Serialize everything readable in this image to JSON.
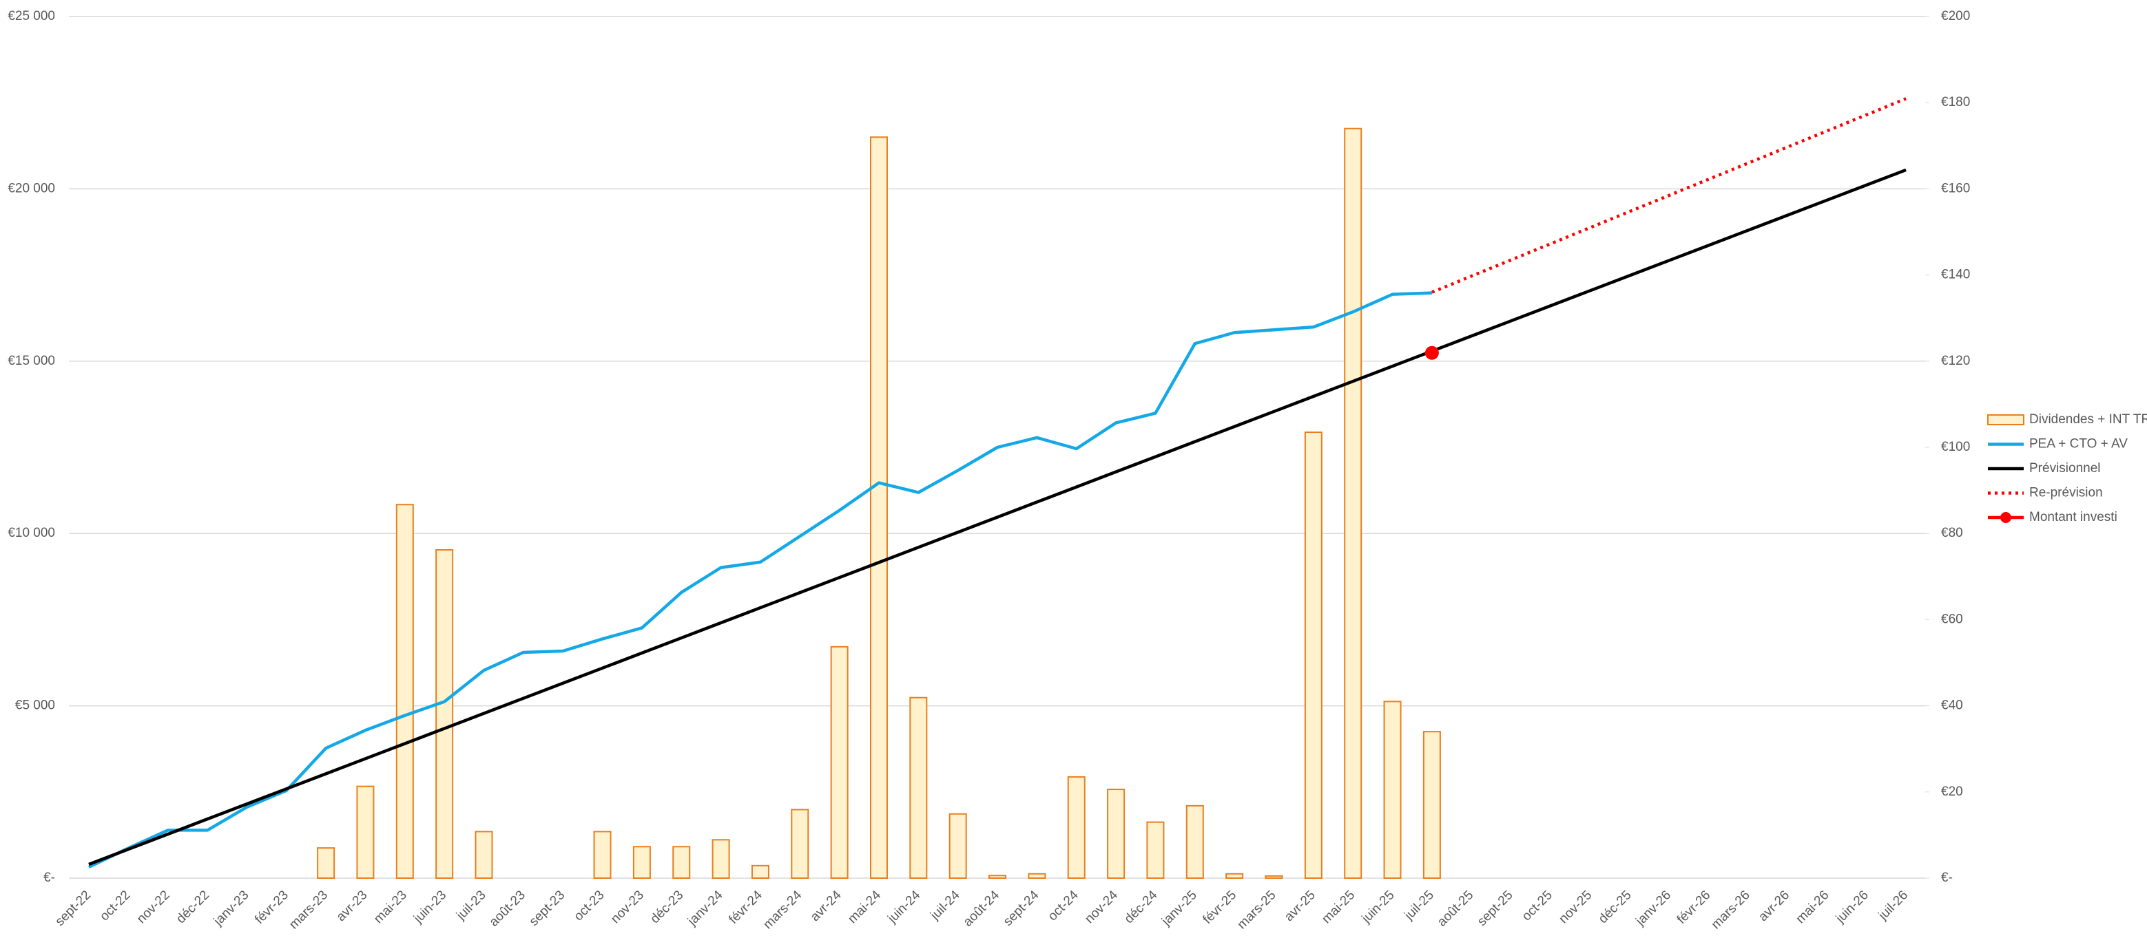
{
  "chart_data": {
    "type": "bar",
    "categories": [
      "sept-22",
      "oct-22",
      "nov-22",
      "déc-22",
      "janv-23",
      "févr-23",
      "mars-23",
      "avr-23",
      "mai-23",
      "juin-23",
      "juil-23",
      "août-23",
      "sept-23",
      "oct-23",
      "nov-23",
      "déc-23",
      "janv-24",
      "févr-24",
      "mars-24",
      "avr-24",
      "mai-24",
      "juin-24",
      "juil-24",
      "août-24",
      "sept-24",
      "oct-24",
      "nov-24",
      "déc-24",
      "janv-25",
      "févr-25",
      "mars-25",
      "avr-25",
      "mai-25",
      "juin-25",
      "juil-25",
      "août-25",
      "sept-25",
      "oct-25",
      "nov-25",
      "déc-25",
      "janv-26",
      "févr-26",
      "mars-26",
      "avr-26",
      "mai-26",
      "juin-26",
      "juil-26"
    ],
    "ylim": [
      0,
      25000
    ],
    "yticks": [
      {
        "value": 0,
        "label": "€-"
      },
      {
        "value": 5000,
        "label": "€5 000"
      },
      {
        "value": 10000,
        "label": "€10 000"
      },
      {
        "value": 15000,
        "label": "€15 000"
      },
      {
        "value": 20000,
        "label": "€20 000"
      },
      {
        "value": 25000,
        "label": "€25 000"
      }
    ],
    "y2lim": [
      0,
      200
    ],
    "y2ticks": [
      {
        "value": 0,
        "label": "€-"
      },
      {
        "value": 20,
        "label": "€20"
      },
      {
        "value": 40,
        "label": "€40"
      },
      {
        "value": 60,
        "label": "€60"
      },
      {
        "value": 80,
        "label": "€80"
      },
      {
        "value": 100,
        "label": "€100"
      },
      {
        "value": 120,
        "label": "€120"
      },
      {
        "value": 140,
        "label": "€140"
      },
      {
        "value": 160,
        "label": "€160"
      },
      {
        "value": 180,
        "label": "€180"
      },
      {
        "value": 200,
        "label": "€200"
      }
    ],
    "grid": true,
    "legend": "right",
    "series": [
      {
        "name": "Dividendes + INT TR",
        "type": "bar",
        "axis": "y2",
        "color": "#fff2cc",
        "edge_color": "#e97e1e",
        "values": [
          null,
          null,
          null,
          null,
          null,
          null,
          7,
          21.3,
          86.7,
          76.2,
          10.8,
          null,
          null,
          10.8,
          7.3,
          7.3,
          8.9,
          2.9,
          15.9,
          53.7,
          172,
          41.9,
          14.9,
          0.6,
          1,
          23.5,
          20.6,
          13,
          16.8,
          1,
          0.5,
          103.5,
          174,
          41,
          34,
          null,
          null,
          null,
          null,
          null,
          null,
          null,
          null,
          null,
          null,
          null,
          null
        ]
      },
      {
        "name": "PEA + CTO + AV",
        "type": "line",
        "color": "#14a9e6",
        "values": [
          320,
          870,
          1390,
          1390,
          2060,
          2540,
          3770,
          4290,
          4720,
          5120,
          6030,
          6550,
          6590,
          6940,
          7260,
          8290,
          9010,
          9170,
          9920,
          10670,
          11470,
          11190,
          11830,
          12500,
          12780,
          12460,
          13210,
          13490,
          15510,
          15830,
          15910,
          15990,
          16430,
          16940,
          16980,
          null,
          null,
          null,
          null,
          null,
          null,
          null,
          null,
          null,
          null,
          null,
          null
        ]
      },
      {
        "name": "Prévisionnel",
        "type": "line",
        "color": "#000000",
        "values": [
          400,
          838,
          1276,
          1714,
          2152,
          2590,
          3028,
          3466,
          3904,
          4342,
          4780,
          5218,
          5656,
          6094,
          6532,
          6970,
          7408,
          7846,
          8284,
          8722,
          9160,
          9598,
          10036,
          10474,
          10912,
          11350,
          11788,
          12226,
          12664,
          13102,
          13540,
          13978,
          14416,
          14854,
          15292,
          15730,
          16168,
          16606,
          17044,
          17482,
          17920,
          18358,
          18796,
          19234,
          19672,
          20110,
          20548
        ]
      },
      {
        "name": "Re-prévision",
        "type": "line",
        "style": "dotted",
        "color": "#ff0000",
        "values": [
          null,
          null,
          null,
          null,
          null,
          null,
          null,
          null,
          null,
          null,
          null,
          null,
          null,
          null,
          null,
          null,
          null,
          null,
          null,
          null,
          null,
          null,
          null,
          null,
          null,
          null,
          null,
          null,
          null,
          null,
          null,
          null,
          null,
          null,
          17000,
          17468,
          17936,
          18404,
          18872,
          19340,
          19808,
          20276,
          20744,
          21212,
          21680,
          22148,
          22616
        ]
      },
      {
        "name": "Montant investi",
        "type": "line",
        "marker": "circle",
        "color": "#ff0000",
        "values": [
          null,
          null,
          null,
          null,
          null,
          null,
          null,
          null,
          null,
          null,
          null,
          null,
          null,
          null,
          null,
          null,
          null,
          null,
          null,
          null,
          null,
          null,
          null,
          null,
          null,
          null,
          null,
          null,
          null,
          null,
          null,
          null,
          null,
          null,
          15240,
          null,
          null,
          null,
          null,
          null,
          null,
          null,
          null,
          null,
          null,
          null,
          null
        ]
      }
    ]
  }
}
